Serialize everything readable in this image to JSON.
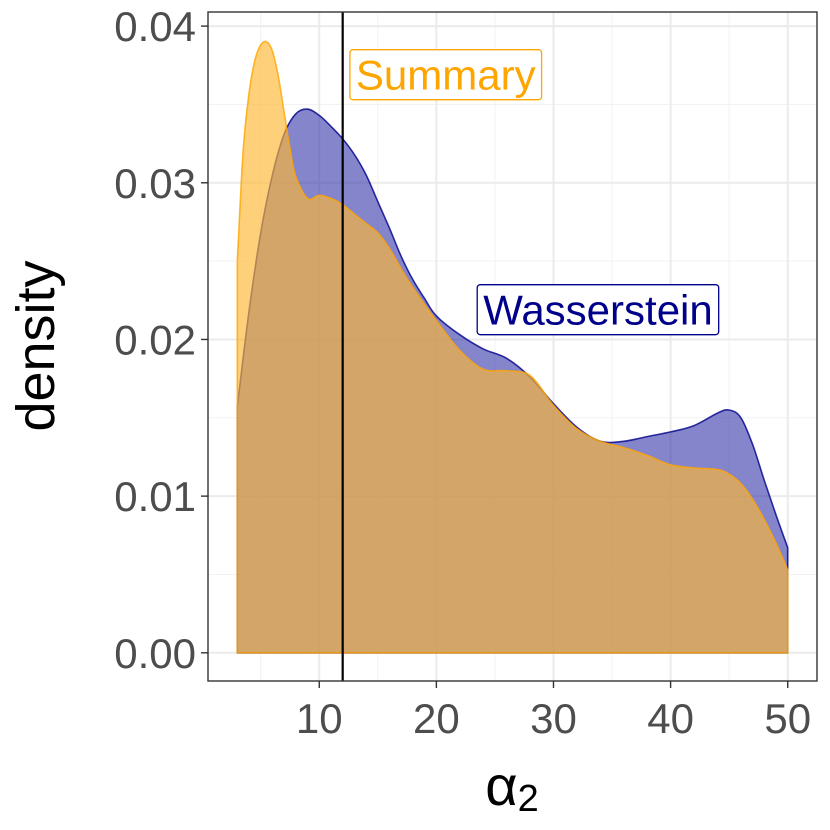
{
  "chart_data": {
    "type": "area",
    "title": "",
    "xlabel": "α",
    "xlabel_subscript": "2",
    "ylabel": "density",
    "xlim": [
      0.5,
      52.5
    ],
    "ylim": [
      -0.0018,
      0.0409
    ],
    "x_ticks": [
      10,
      20,
      30,
      40,
      50
    ],
    "x_tick_labels": [
      "10",
      "20",
      "30",
      "40",
      "50"
    ],
    "y_ticks": [
      0.0,
      0.01,
      0.02,
      0.03,
      0.04
    ],
    "y_tick_labels": [
      "0.00",
      "0.01",
      "0.02",
      "0.03",
      "0.04"
    ],
    "grid": true,
    "vline": {
      "x": 12,
      "color": "#000000"
    },
    "series": [
      {
        "name": "Wasserstein",
        "color": "#00008B",
        "fill": "#3333AA",
        "opacity": 0.6,
        "x": [
          3,
          4,
          5,
          6,
          7,
          8,
          9,
          10,
          11,
          12,
          13,
          14,
          15,
          16,
          17,
          18,
          19,
          20,
          22,
          24,
          26,
          28,
          30,
          32,
          34,
          36,
          38,
          40,
          42,
          44,
          45,
          46,
          47,
          48,
          49,
          50
        ],
        "values": [
          0.0157,
          0.0218,
          0.0268,
          0.0305,
          0.0331,
          0.0344,
          0.0347,
          0.0343,
          0.0336,
          0.0328,
          0.0318,
          0.0305,
          0.0288,
          0.0271,
          0.0253,
          0.0238,
          0.0226,
          0.0215,
          0.0203,
          0.0194,
          0.0188,
          0.0176,
          0.0159,
          0.0144,
          0.0135,
          0.0135,
          0.0138,
          0.0141,
          0.0145,
          0.0153,
          0.0155,
          0.015,
          0.0133,
          0.011,
          0.0088,
          0.0067
        ]
      },
      {
        "name": "Summary",
        "color": "#FFA500",
        "fill": "#FFB733",
        "opacity": 0.65,
        "x": [
          3,
          3.5,
          4,
          4.5,
          5,
          5.5,
          6,
          6.5,
          7,
          7.5,
          8,
          9,
          10,
          11,
          12,
          13,
          14,
          15,
          16,
          17,
          18,
          20,
          22,
          24,
          26,
          28,
          30,
          32,
          34,
          36,
          38,
          40,
          42,
          44,
          45,
          46,
          47,
          48,
          49,
          50
        ],
        "values": [
          0.025,
          0.032,
          0.0357,
          0.0378,
          0.0388,
          0.039,
          0.0384,
          0.0368,
          0.0345,
          0.0322,
          0.0304,
          0.029,
          0.0292,
          0.029,
          0.0286,
          0.028,
          0.0274,
          0.0268,
          0.0258,
          0.0245,
          0.0233,
          0.0212,
          0.0193,
          0.0181,
          0.018,
          0.0177,
          0.0158,
          0.0143,
          0.0135,
          0.0131,
          0.0126,
          0.012,
          0.0118,
          0.0117,
          0.0114,
          0.0108,
          0.0098,
          0.0085,
          0.007,
          0.0053
        ]
      }
    ],
    "annotations": [
      {
        "text": "Summary",
        "x": 20.8,
        "y": 0.0369,
        "color": "#FFA500",
        "series": "Summary"
      },
      {
        "text": "Wasserstein",
        "x": 33.8,
        "y": 0.0219,
        "color": "#00008B",
        "series": "Wasserstein"
      }
    ]
  }
}
